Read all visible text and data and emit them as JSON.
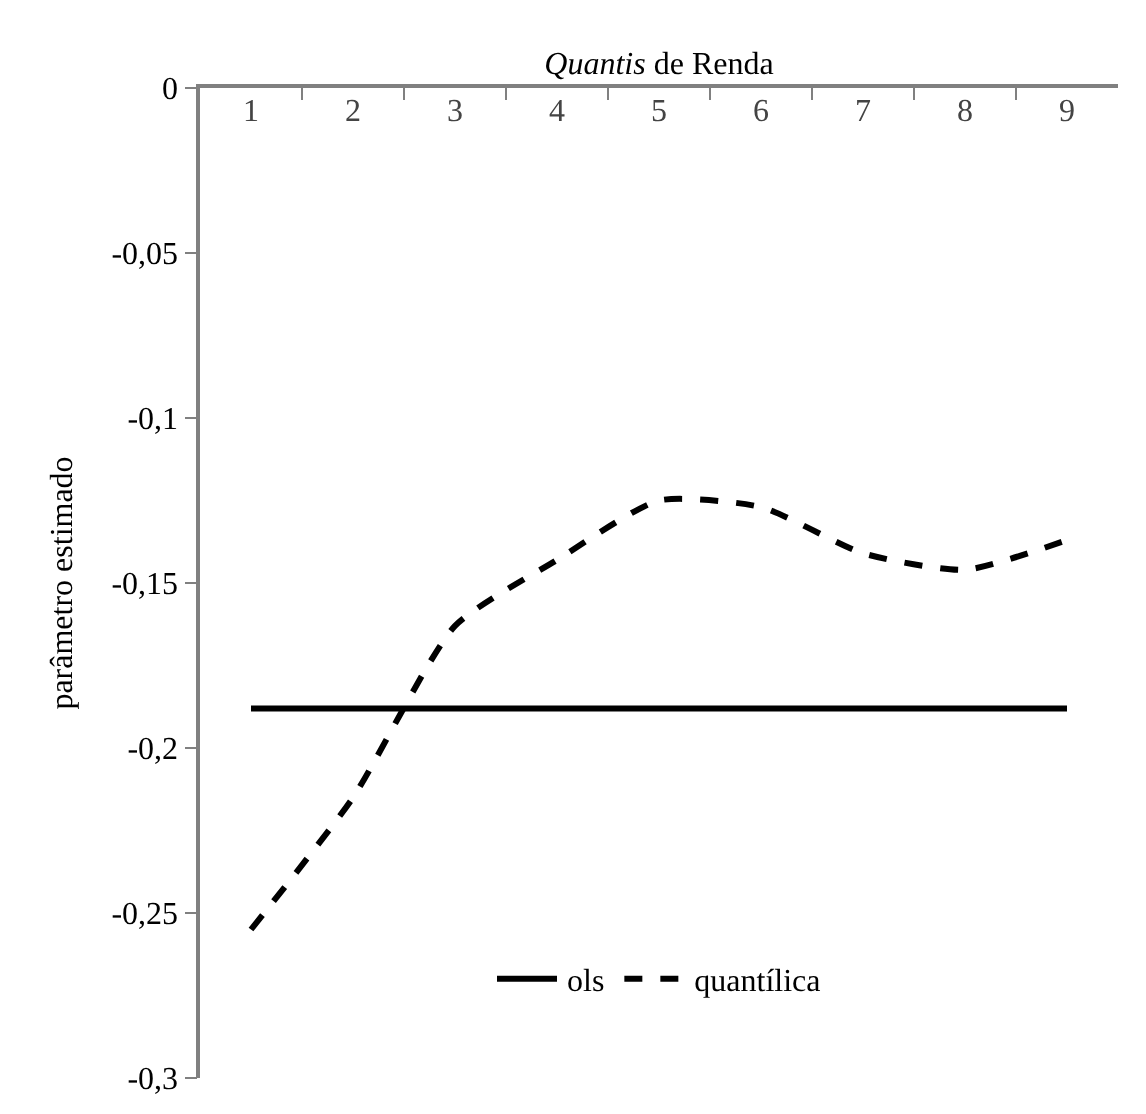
{
  "chart_data": {
    "type": "line",
    "xlabel": "Quantis de Renda",
    "ylabel": "parâmetro estimado",
    "categories": [
      "1",
      "2",
      "3",
      "4",
      "5",
      "6",
      "7",
      "8",
      "9"
    ],
    "series": [
      {
        "name": "ols",
        "color": "#000000",
        "line_style": "solid",
        "values": [
          -0.188,
          -0.188,
          -0.188,
          -0.188,
          -0.188,
          -0.188,
          -0.188,
          -0.188,
          -0.188
        ]
      },
      {
        "name": "quantílica",
        "color": "#000000",
        "line_style": "dashed",
        "values": [
          -0.255,
          -0.215,
          -0.163,
          -0.143,
          -0.125,
          -0.127,
          -0.141,
          -0.146,
          -0.137
        ]
      }
    ],
    "ylim": [
      -0.3,
      0
    ],
    "yticks": [
      {
        "value": 0,
        "label": "0"
      },
      {
        "value": -0.05,
        "label": "-0,05"
      },
      {
        "value": -0.1,
        "label": "-0,1"
      },
      {
        "value": -0.15,
        "label": "-0,15"
      },
      {
        "value": -0.2,
        "label": "-0,2"
      },
      {
        "value": -0.25,
        "label": "-0,25"
      },
      {
        "value": -0.3,
        "label": "-0,3"
      }
    ],
    "legend": "bottom",
    "marker": "none"
  }
}
